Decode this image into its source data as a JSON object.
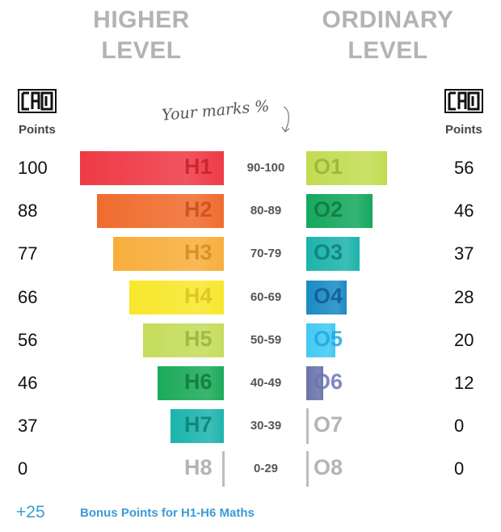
{
  "headers": {
    "higher": [
      "HIGHER",
      "LEVEL"
    ],
    "ordinary": [
      "ORDINARY",
      "LEVEL"
    ]
  },
  "logo_text": "CAO",
  "points_label": "Points",
  "marks_annotation": "Your marks %",
  "chart_data": {
    "type": "bar",
    "orientation": "horizontal",
    "title": "",
    "categories": [
      "90-100",
      "80-89",
      "70-79",
      "60-69",
      "50-59",
      "40-49",
      "30-39",
      "0-29"
    ],
    "series": [
      {
        "name": "HIGHER LEVEL",
        "grades": [
          "H1",
          "H2",
          "H3",
          "H4",
          "H5",
          "H6",
          "H7",
          "H8"
        ],
        "values": [
          100,
          88,
          77,
          66,
          56,
          46,
          37,
          0
        ],
        "colors": [
          "#ee3a46",
          "#f06c2e",
          "#f8ae3c",
          "#f8e72c",
          "#c5dc5c",
          "#1caa5a",
          "#1cb4ab",
          "#bdbdbd"
        ],
        "label_colors": [
          "#c8202c",
          "#c8501c",
          "#d28c24",
          "#d8c41c",
          "#98b438",
          "#0e7a3c",
          "#0e7e78",
          "#a8a8a8"
        ]
      },
      {
        "name": "ORDINARY LEVEL",
        "grades": [
          "O1",
          "O2",
          "O3",
          "O4",
          "O5",
          "O6",
          "O7",
          "O8"
        ],
        "values": [
          56,
          46,
          37,
          28,
          20,
          12,
          0,
          0
        ],
        "colors": [
          "#c2dc52",
          "#16a85e",
          "#1cb4ab",
          "#1b8ac4",
          "#44c8f2",
          "#6a74a8",
          "#bdbdbd",
          "#bdbdbd"
        ],
        "label_colors": [
          "#98b438",
          "#0e7a3c",
          "#0e7e78",
          "#0e5c94",
          "#1ca8e4",
          "#6a74b8",
          "#a8a8a8",
          "#a8a8a8"
        ]
      }
    ]
  },
  "bonus": {
    "value": "+25",
    "text": "Bonus Points for H1-H6 Maths"
  }
}
